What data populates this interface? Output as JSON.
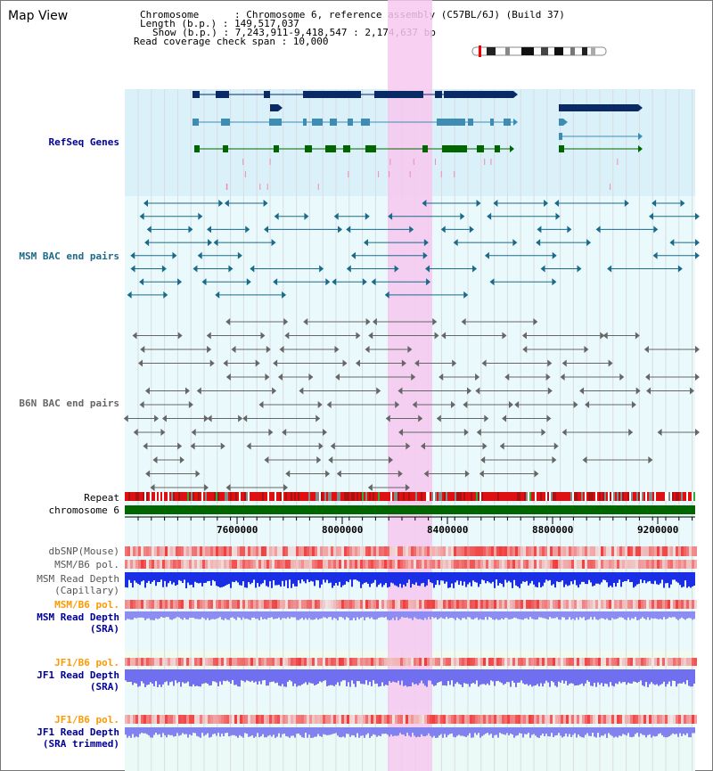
{
  "page": {
    "title": "Map View"
  },
  "info": {
    "chromosome": "Chromosome      : Chromosome 6, reference assembly (C57BL/6J) (Build 37)",
    "length": "Length (b.p.) : 149,517,037",
    "show": "Show (b.p.) : 7,243,911-9,418,547 : 2,174,637 bp",
    "coverage": "Read coverage check span : 10,000"
  },
  "tracks": {
    "refseq": "RefSeq Genes",
    "msm_bac": "MSM BAC end pairs",
    "b6n_bac": "B6N BAC end pairs",
    "repeat": "Repeat",
    "chromosome": "chromosome 6",
    "dbsnp": "dbSNP(Mouse)",
    "msm_b6_pol_1": "MSM/B6 pol.",
    "msm_read_depth_cap_1": "MSM Read Depth",
    "msm_read_depth_cap_2": "(Capillary)",
    "msm_b6_pol_2": "MSM/B6 pol.",
    "msm_read_depth_sra_1": "MSM Read Depth",
    "msm_read_depth_sra_2": "(SRA)",
    "jf1_b6_pol_1": "JF1/B6 pol.",
    "jf1_read_depth_sra_1": "JF1 Read Depth",
    "jf1_read_depth_sra_2": "(SRA)",
    "jf1_b6_pol_2": "JF1/B6 pol.",
    "jf1_read_depth_trim_1": "JF1 Read Depth",
    "jf1_read_depth_trim_2": "(SRA trimmed)"
  },
  "axis": {
    "ticks": [
      "7600000",
      "8000000",
      "8400000",
      "8800000",
      "9200000"
    ]
  },
  "colors": {
    "gene_dark": "#0a2a66",
    "gene_mid": "#3c8cb4",
    "gene_green": "#006600",
    "msm_bac": "#1a6a8a",
    "b6n_bac": "#666666",
    "highlight": "#f7c8ef",
    "blue_label": "#000099",
    "orange_label": "#ff9900",
    "chrom_green": "#006600"
  }
}
